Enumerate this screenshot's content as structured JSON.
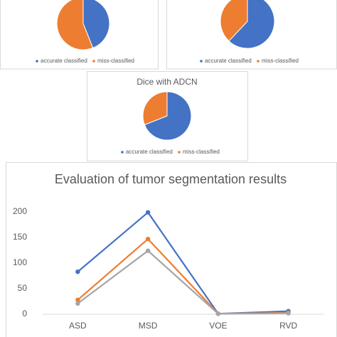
{
  "chart_data": [
    {
      "type": "pie",
      "categories": [
        "accurate classified",
        "miss-classified"
      ],
      "values": [
        44,
        56
      ],
      "colors": [
        "#4472c4",
        "#ed7d31"
      ]
    },
    {
      "type": "pie",
      "categories": [
        "accurate classified",
        "miss-classified"
      ],
      "values": [
        62,
        38
      ],
      "colors": [
        "#4472c4",
        "#ed7d31"
      ]
    },
    {
      "type": "pie",
      "title": "Dice with ADCN",
      "categories": [
        "accurate classified",
        "miss-classified"
      ],
      "values": [
        69,
        31
      ],
      "colors": [
        "#4472c4",
        "#ed7d31"
      ]
    },
    {
      "type": "line",
      "title": "Evaluation of tumor segmentation results",
      "categories": [
        "ASD",
        "MSD",
        "VOE",
        "RVD"
      ],
      "series": [
        {
          "color": "#4472c4",
          "values": [
            83,
            199,
            1,
            6
          ]
        },
        {
          "color": "#ed7d31",
          "values": [
            28,
            147,
            1,
            3
          ]
        },
        {
          "color": "#a5a5a5",
          "values": [
            21,
            124,
            1,
            2
          ]
        }
      ],
      "ylim": [
        0,
        200
      ],
      "yticks": [
        0,
        50,
        100,
        150,
        200
      ],
      "grid": false
    }
  ]
}
